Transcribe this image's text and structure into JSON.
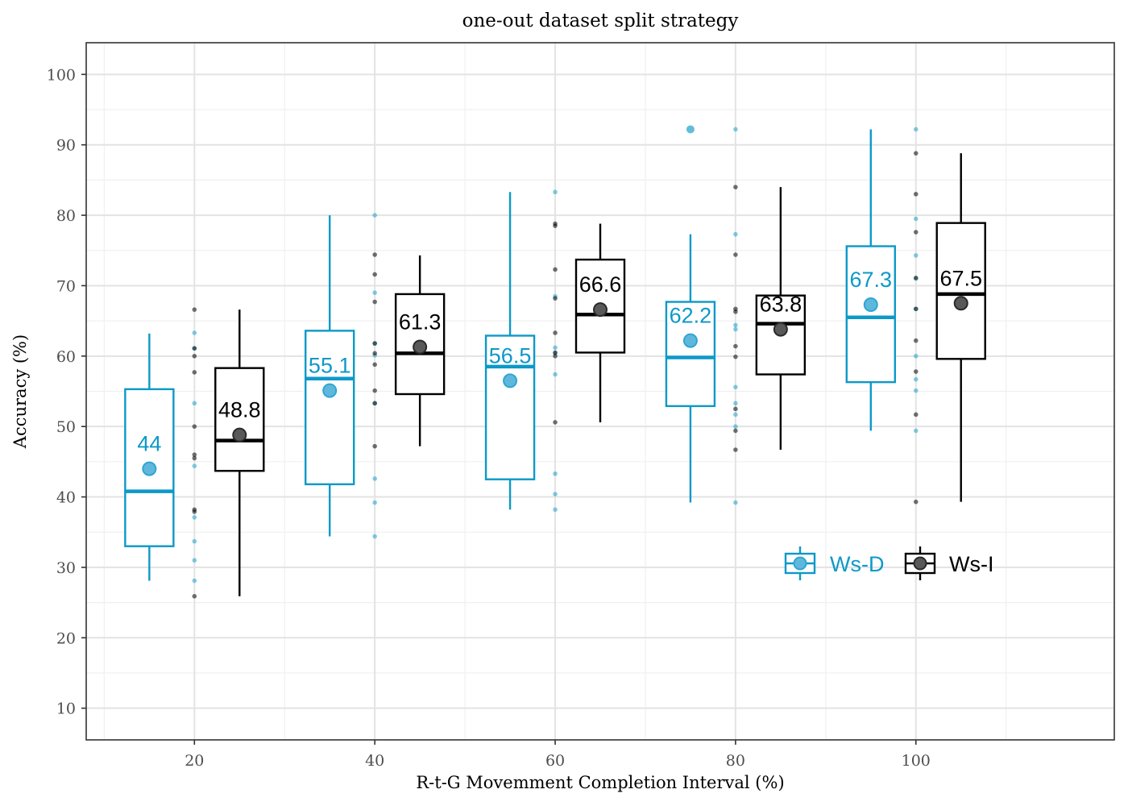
{
  "chart_data": {
    "type": "box",
    "title": "one-out dataset split strategy",
    "xlabel": "R-t-G Movemment Completion Interval (%)",
    "ylabel": "Accuracy (%)",
    "xlim": [
      8,
      122
    ],
    "ylim": [
      5.5,
      104.5
    ],
    "x_ticks": [
      20,
      40,
      60,
      80,
      100
    ],
    "y_ticks": [
      10,
      20,
      30,
      40,
      50,
      60,
      70,
      80,
      90,
      100
    ],
    "grid": true,
    "legend_position": "inside-bottom-right",
    "series": [
      {
        "name": "Ws-D",
        "color": "#0c99c8",
        "boxes": [
          {
            "x": 15,
            "whisker_low": 28.1,
            "q1": 33.0,
            "median": 40.8,
            "q3": 55.3,
            "whisker_high": 63.2,
            "mean": 44.0,
            "mean_label": "44",
            "outliers": []
          },
          {
            "x": 35,
            "whisker_low": 34.4,
            "q1": 41.8,
            "median": 56.8,
            "q3": 63.6,
            "whisker_high": 80.0,
            "mean": 55.1,
            "mean_label": "55.1",
            "outliers": []
          },
          {
            "x": 55,
            "whisker_low": 38.2,
            "q1": 42.5,
            "median": 58.5,
            "q3": 62.9,
            "whisker_high": 83.3,
            "mean": 56.5,
            "mean_label": "56.5",
            "outliers": []
          },
          {
            "x": 75,
            "whisker_low": 39.2,
            "q1": 52.9,
            "median": 59.8,
            "q3": 67.7,
            "whisker_high": 77.3,
            "mean": 62.2,
            "mean_label": "62.2",
            "outliers": [
              92.2
            ]
          },
          {
            "x": 95,
            "whisker_low": 49.4,
            "q1": 56.3,
            "median": 65.5,
            "q3": 75.6,
            "whisker_high": 92.2,
            "mean": 67.3,
            "mean_label": "67.3",
            "outliers": []
          }
        ],
        "points": [
          {
            "x": 20,
            "values": [
              63.3,
              61.1,
              53.3,
              44.4,
              37.1,
              33.7,
              31.0,
              28.1
            ]
          },
          {
            "x": 40,
            "values": [
              80.0,
              69.0,
              61.8,
              60.1,
              53.3,
              42.6,
              39.2,
              34.4
            ]
          },
          {
            "x": 60,
            "values": [
              83.3,
              68.5,
              61.2,
              60.4,
              57.4,
              43.3,
              40.4,
              38.2
            ]
          },
          {
            "x": 80,
            "values": [
              92.2,
              77.3,
              64.4,
              63.8,
              55.6,
              53.3,
              51.7,
              50.0,
              39.2
            ]
          },
          {
            "x": 100,
            "values": [
              92.2,
              79.5,
              74.3,
              71.0,
              66.7,
              60.0,
              56.7,
              55.1,
              49.4
            ]
          }
        ]
      },
      {
        "name": "Ws-I",
        "color": "#000000",
        "boxes": [
          {
            "x": 25,
            "whisker_low": 25.9,
            "q1": 43.7,
            "median": 48.0,
            "q3": 58.3,
            "whisker_high": 66.6,
            "mean": 48.8,
            "mean_label": "48.8",
            "outliers": []
          },
          {
            "x": 45,
            "whisker_low": 47.2,
            "q1": 54.6,
            "median": 60.4,
            "q3": 68.8,
            "whisker_high": 74.3,
            "mean": 61.3,
            "mean_label": "61.3",
            "outliers": []
          },
          {
            "x": 65,
            "whisker_low": 50.6,
            "q1": 60.5,
            "median": 65.9,
            "q3": 73.7,
            "whisker_high": 78.8,
            "mean": 66.6,
            "mean_label": "66.6",
            "outliers": []
          },
          {
            "x": 85,
            "whisker_low": 46.7,
            "q1": 57.4,
            "median": 64.6,
            "q3": 68.6,
            "whisker_high": 84.0,
            "mean": 63.8,
            "mean_label": "63.8",
            "outliers": []
          },
          {
            "x": 105,
            "whisker_low": 39.3,
            "q1": 59.6,
            "median": 68.8,
            "q3": 78.9,
            "whisker_high": 88.8,
            "mean": 67.5,
            "mean_label": "67.5",
            "outliers": []
          }
        ],
        "points": [
          {
            "x": 20,
            "values": [
              66.6,
              61.1,
              60.0,
              57.7,
              50.0,
              46.0,
              45.5,
              38.2,
              37.9,
              25.9
            ]
          },
          {
            "x": 40,
            "values": [
              74.4,
              71.6,
              67.7,
              61.8,
              60.4,
              58.8,
              55.1,
              53.3,
              47.2
            ]
          },
          {
            "x": 60,
            "values": [
              78.8,
              78.5,
              72.3,
              68.2,
              63.3,
              60.5,
              60.0,
              50.6
            ]
          },
          {
            "x": 80,
            "values": [
              84.0,
              74.4,
              66.7,
              66.3,
              61.4,
              59.9,
              52.5,
              49.4,
              46.7
            ]
          },
          {
            "x": 100,
            "values": [
              88.8,
              83.0,
              77.6,
              71.1,
              66.7,
              62.2,
              57.8,
              51.7,
              39.3
            ]
          }
        ]
      }
    ]
  }
}
